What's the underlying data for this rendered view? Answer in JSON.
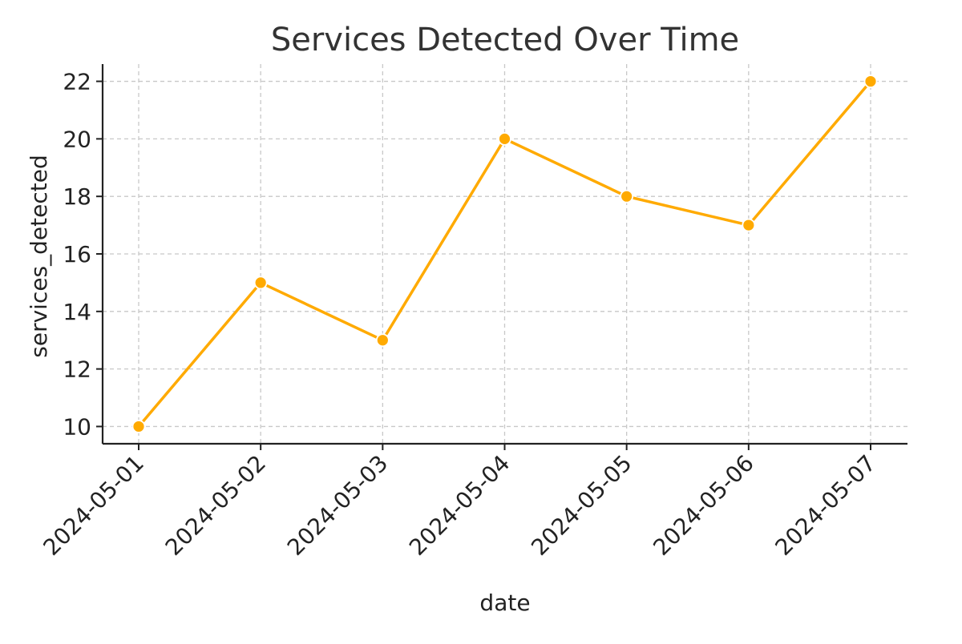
{
  "chart_data": {
    "type": "line",
    "title": "Services Detected Over Time",
    "xlabel": "date",
    "ylabel": "services_detected",
    "x": [
      "2024-05-01",
      "2024-05-02",
      "2024-05-03",
      "2024-05-04",
      "2024-05-05",
      "2024-05-06",
      "2024-05-07"
    ],
    "series": [
      {
        "values": [
          10,
          15,
          13,
          20,
          18,
          17,
          22
        ],
        "color": "#FFAA00"
      }
    ],
    "yticks": [
      10,
      12,
      14,
      16,
      18,
      20,
      22
    ],
    "ylim": [
      9.4,
      22.6
    ],
    "grid": true,
    "grid_style": "dashed",
    "legend": "none",
    "x_tick_rotation": "45 degrees"
  }
}
